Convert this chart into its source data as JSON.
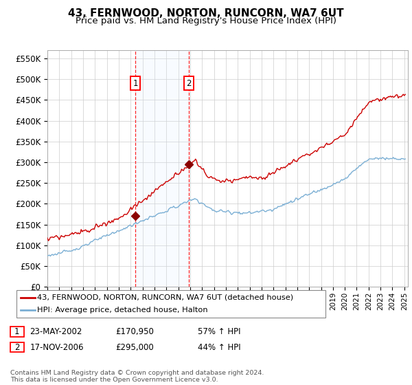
{
  "title": "43, FERNWOOD, NORTON, RUNCORN, WA7 6UT",
  "subtitle": "Price paid vs. HM Land Registry's House Price Index (HPI)",
  "ylabel_ticks": [
    "£0",
    "£50K",
    "£100K",
    "£150K",
    "£200K",
    "£250K",
    "£300K",
    "£350K",
    "£400K",
    "£450K",
    "£500K",
    "£550K"
  ],
  "ytick_values": [
    0,
    50000,
    100000,
    150000,
    200000,
    250000,
    300000,
    350000,
    400000,
    450000,
    500000,
    550000
  ],
  "ylim": [
    0,
    570000
  ],
  "xlim_start": 1995.0,
  "xlim_end": 2025.3,
  "sale1_date": 2002.388,
  "sale1_price": 170950,
  "sale1_label": "1",
  "sale2_date": 2006.88,
  "sale2_price": 295000,
  "sale2_label": "2",
  "hpi_line_color": "#7bafd4",
  "price_line_color": "#cc0000",
  "sale_marker_color": "#8b0000",
  "shade_color": "#ddeeff",
  "grid_color": "#cccccc",
  "background_color": "#ffffff",
  "legend1": "43, FERNWOOD, NORTON, RUNCORN, WA7 6UT (detached house)",
  "legend2": "HPI: Average price, detached house, Halton",
  "sale1_col1": "23-MAY-2002",
  "sale1_col2": "£170,950",
  "sale1_col3": "57% ↑ HPI",
  "sale2_col1": "17-NOV-2006",
  "sale2_col2": "£295,000",
  "sale2_col3": "44% ↑ HPI",
  "footnote": "Contains HM Land Registry data © Crown copyright and database right 2024.\nThis data is licensed under the Open Government Licence v3.0.",
  "title_fontsize": 11,
  "subtitle_fontsize": 9.5
}
